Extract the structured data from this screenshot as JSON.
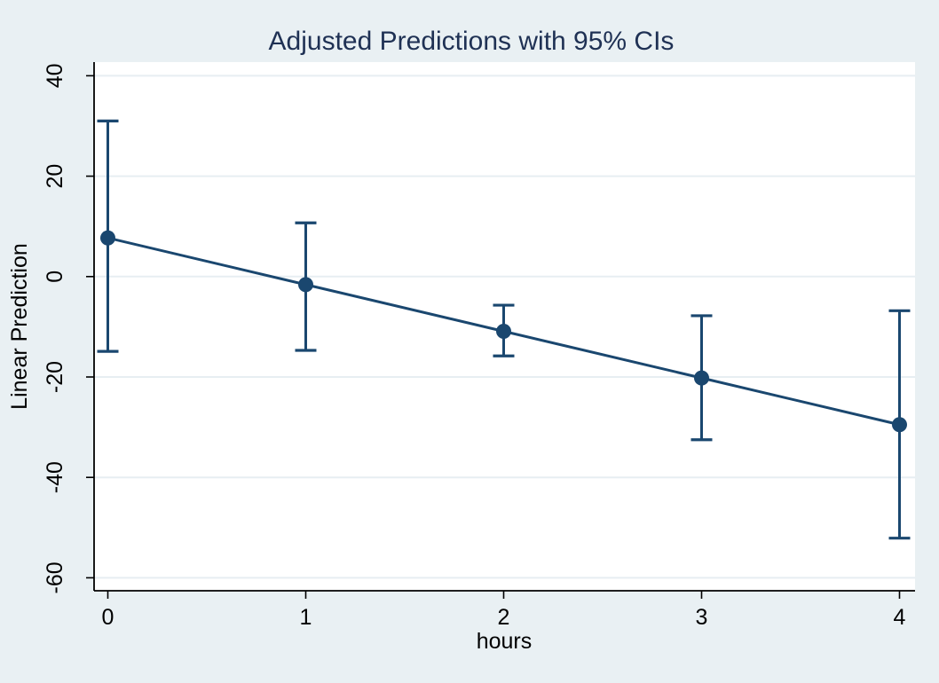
{
  "colors": {
    "background": "#e9f0f3",
    "plot_region": "#ffffff",
    "gridline": "#e7eef2",
    "axis": "#000000",
    "tick_label": "#000000",
    "series": "#1a476f",
    "title": "#1f3154"
  },
  "chart_data": {
    "type": "line",
    "title": "Adjusted Predictions with 95% CIs",
    "xlabel": "hours",
    "ylabel": "Linear Prediction",
    "x": [
      0,
      1,
      2,
      3,
      4
    ],
    "series": [
      {
        "name": "Linear Prediction",
        "values": [
          7.7,
          -1.6,
          -10.9,
          -20.2,
          -29.5
        ],
        "ci_low": [
          -14.9,
          -14.7,
          -15.8,
          -32.5,
          -52.1
        ],
        "ci_high": [
          31.0,
          10.7,
          -5.7,
          -7.8,
          -6.8
        ],
        "marker": "circle",
        "color": "#1a476f"
      }
    ],
    "x_ticks": [
      0,
      1,
      2,
      3,
      4
    ],
    "y_ticks": [
      40,
      20,
      0,
      -20,
      -40,
      -60
    ],
    "xlim": [
      -0.07,
      4.08
    ],
    "ylim": [
      -62.6,
      42.7
    ],
    "grid": "horizontal-only",
    "legend": "none",
    "error_bars": "95% confidence intervals with caps"
  }
}
